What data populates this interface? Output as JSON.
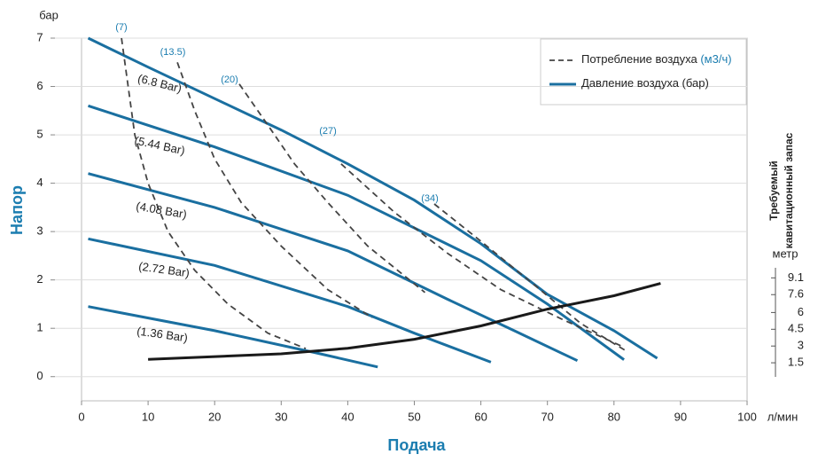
{
  "chart_data": {
    "type": "line",
    "x_label": "Подача",
    "x_unit": "л/мин",
    "y_label": "Напор",
    "y_unit": "бар",
    "y2_label": [
      "Требуемый",
      "кавитационный запас"
    ],
    "y2_unit": "метр",
    "xlim": [
      0,
      100
    ],
    "xticks": [
      0,
      10,
      20,
      30,
      40,
      50,
      60,
      70,
      80,
      90,
      100
    ],
    "ylim": [
      -0.5,
      7
    ],
    "yticks": [
      0,
      1,
      2,
      3,
      4,
      5,
      6,
      7
    ],
    "y2lim": [
      0,
      10
    ],
    "y2ticks": [
      1.5,
      3,
      4.5,
      6,
      7.6,
      9.1
    ],
    "grid": true,
    "legend": [
      {
        "label": "Потребление воздуха",
        "unit": "(м3/ч)",
        "style": "dashed",
        "color": "#444444"
      },
      {
        "label": "Давление воздуха (бар)",
        "style": "solid",
        "color": "#1a6fa0"
      }
    ],
    "series": [
      {
        "name": "(6.8 Bar)",
        "color": "#1a6fa0",
        "style": "solid",
        "x": [
          1,
          10,
          20,
          30,
          40,
          50,
          60,
          70,
          80,
          86.5
        ],
        "values": [
          7.0,
          6.4,
          5.75,
          5.1,
          4.4,
          3.65,
          2.75,
          1.7,
          0.95,
          0.38
        ]
      },
      {
        "name": "(5.44 Bar)",
        "color": "#1a6fa0",
        "style": "solid",
        "x": [
          1,
          20,
          40,
          60,
          70,
          81.5
        ],
        "values": [
          5.6,
          4.75,
          3.75,
          2.4,
          1.5,
          0.35
        ]
      },
      {
        "name": "(4.08 Bar)",
        "color": "#1a6fa0",
        "style": "solid",
        "x": [
          1,
          20,
          40,
          55,
          65,
          74.5
        ],
        "values": [
          4.2,
          3.5,
          2.6,
          1.6,
          0.95,
          0.33
        ]
      },
      {
        "name": "(2.72 Bar)",
        "color": "#1a6fa0",
        "style": "solid",
        "x": [
          1,
          20,
          40,
          50,
          61.5
        ],
        "values": [
          2.85,
          2.3,
          1.45,
          0.9,
          0.3
        ]
      },
      {
        "name": "(1.36 Bar)",
        "color": "#1a6fa0",
        "style": "solid",
        "x": [
          1,
          20,
          35,
          44.5
        ],
        "values": [
          1.45,
          0.95,
          0.5,
          0.2
        ]
      },
      {
        "name": "(7)",
        "color": "#444444",
        "style": "dashed",
        "x": [
          6,
          7,
          8,
          10,
          13,
          17,
          22,
          28,
          33.7
        ],
        "values": [
          7.0,
          6.0,
          5.0,
          4.0,
          3.0,
          2.2,
          1.5,
          0.9,
          0.58
        ]
      },
      {
        "name": "(13.5)",
        "color": "#444444",
        "style": "dashed",
        "x": [
          14.4,
          17,
          20,
          24,
          30,
          37,
          43.7
        ],
        "values": [
          6.5,
          5.5,
          4.5,
          3.6,
          2.7,
          1.8,
          1.22
        ]
      },
      {
        "name": "(20)",
        "color": "#444444",
        "style": "dashed",
        "x": [
          23.7,
          28,
          32,
          37,
          43,
          51.6
        ],
        "values": [
          6.05,
          5.2,
          4.4,
          3.6,
          2.7,
          1.74
        ]
      },
      {
        "name": "(27)",
        "color": "#444444",
        "style": "dashed",
        "x": [
          39,
          47,
          55,
          63,
          72,
          81
        ],
        "values": [
          4.4,
          3.4,
          2.55,
          1.8,
          1.2,
          0.64
        ]
      },
      {
        "name": "(34)",
        "color": "#444444",
        "style": "dashed",
        "x": [
          53,
          60,
          68,
          75,
          81.6
        ],
        "values": [
          3.57,
          2.8,
          1.9,
          1.1,
          0.55
        ]
      },
      {
        "color": "#1a1a1a",
        "style": "solid",
        "axis": "y2",
        "x": [
          10,
          30,
          40,
          50,
          60,
          70,
          80,
          87
        ],
        "values": [
          1.8,
          2.3,
          2.8,
          3.6,
          4.8,
          6.3,
          7.5,
          8.6
        ]
      }
    ]
  }
}
